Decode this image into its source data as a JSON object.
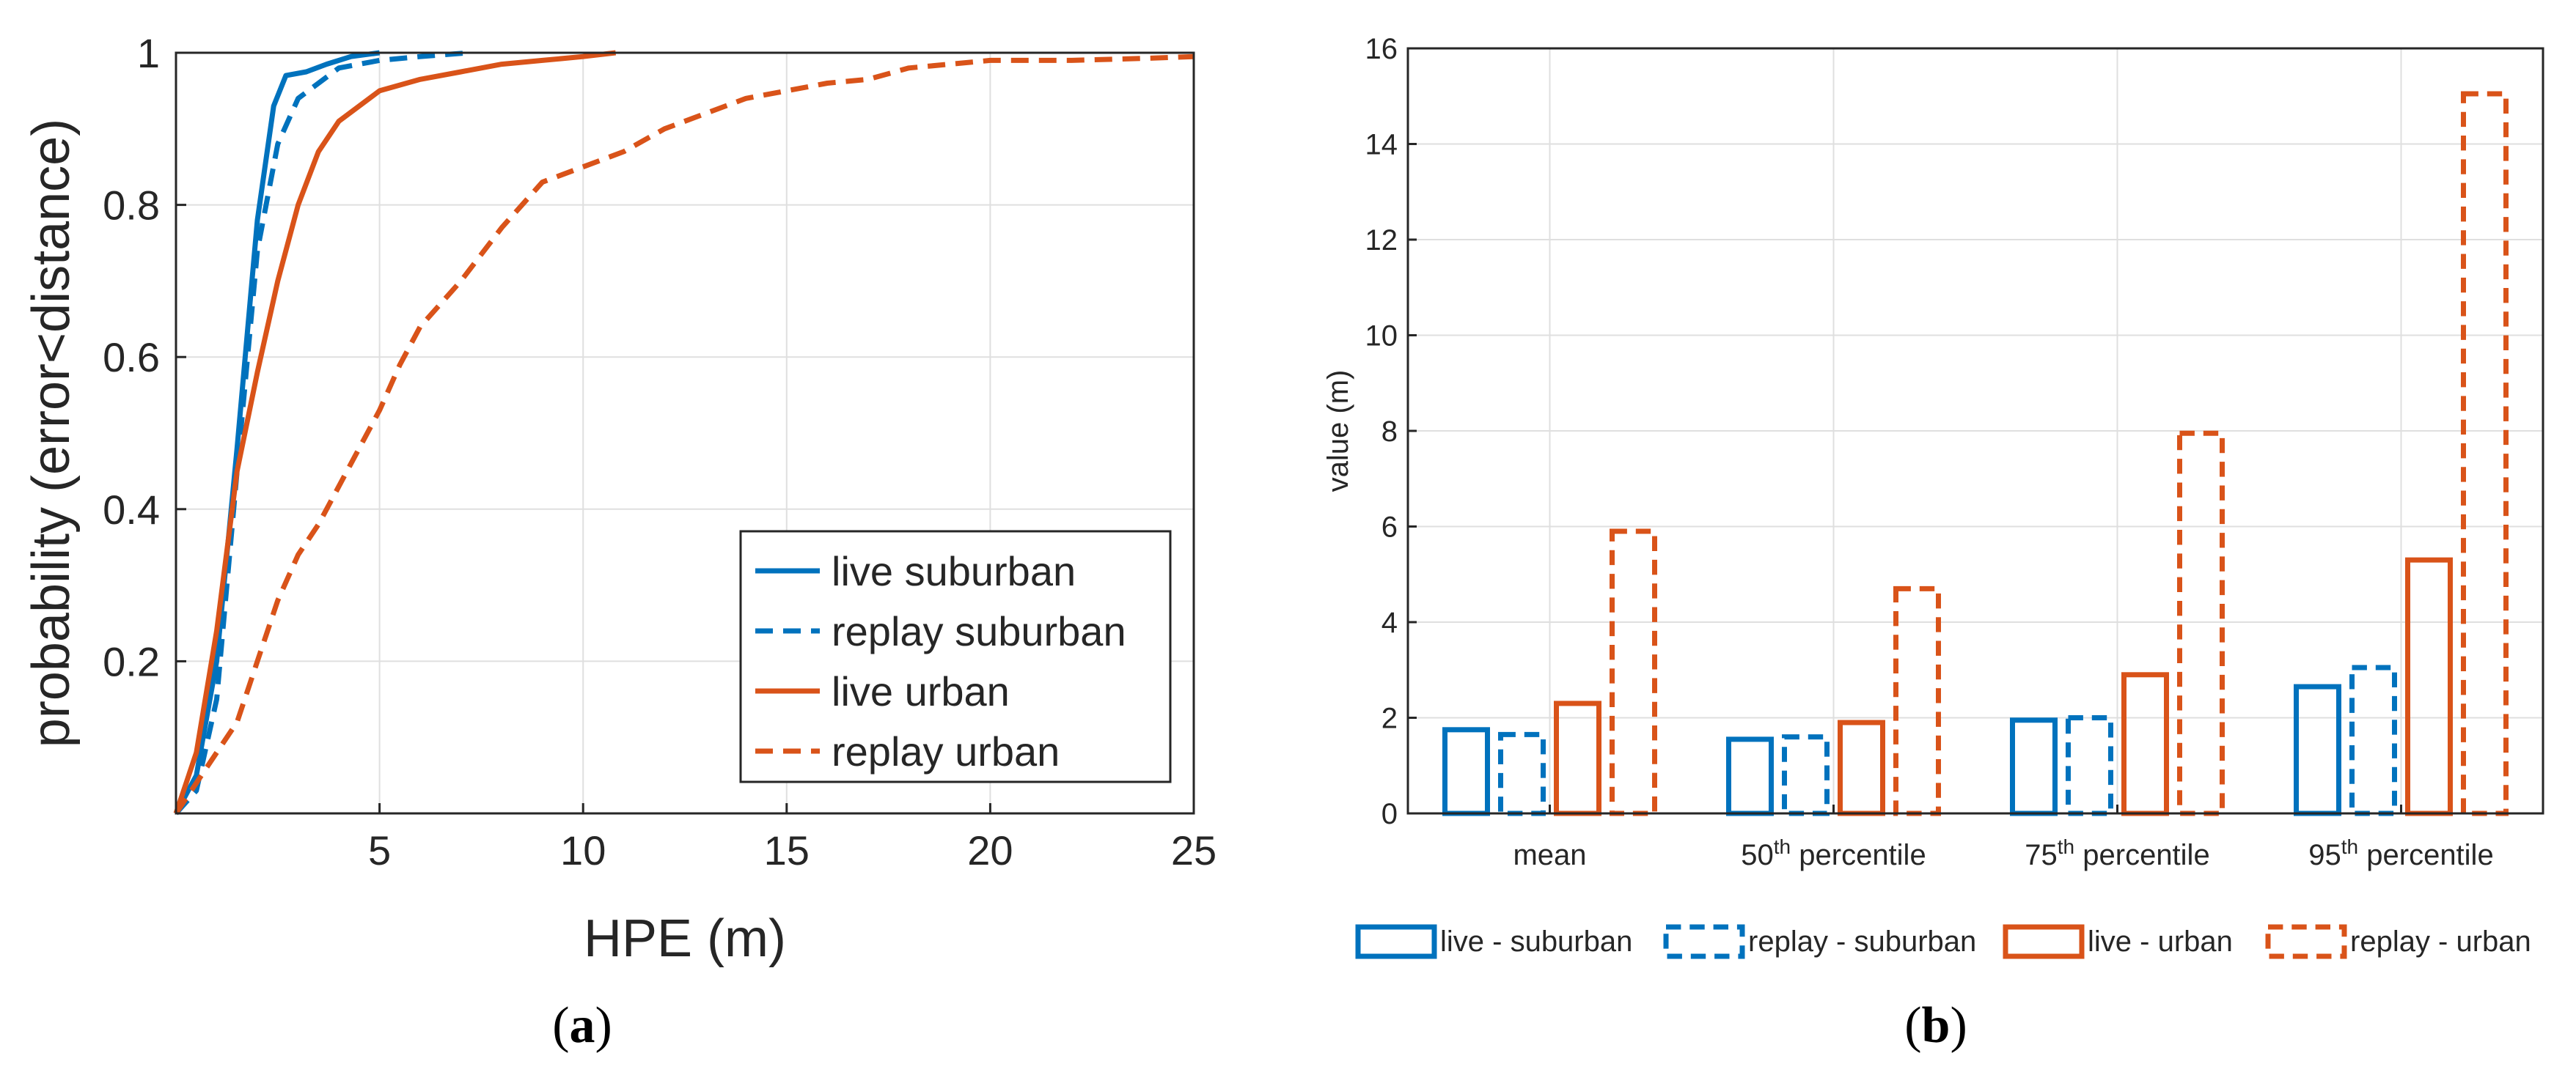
{
  "chart_data": [
    {
      "type": "line",
      "panel_label": "a",
      "title": "",
      "xlabel": "HPE (m)",
      "ylabel": "probability (error<distance)",
      "xlim": [
        0,
        25
      ],
      "ylim": [
        0,
        1
      ],
      "xticks": [
        "5",
        "10",
        "15",
        "20",
        "25"
      ],
      "yticks": [
        "0.2",
        "0.4",
        "0.6",
        "0.8",
        "1"
      ],
      "grid": true,
      "legend_position": "bottom-right",
      "series": [
        {
          "name": "live suburban",
          "color": "#0072BD",
          "style": "solid",
          "points": [
            [
              0,
              0
            ],
            [
              0.5,
              0.05
            ],
            [
              1,
              0.2
            ],
            [
              1.5,
              0.48
            ],
            [
              2,
              0.78
            ],
            [
              2.4,
              0.93
            ],
            [
              2.7,
              0.97
            ],
            [
              3.2,
              0.975
            ],
            [
              3.7,
              0.985
            ],
            [
              4.3,
              0.995
            ],
            [
              5,
              1
            ]
          ]
        },
        {
          "name": "replay suburban",
          "color": "#0072BD",
          "style": "dashed",
          "points": [
            [
              0,
              0
            ],
            [
              0.5,
              0.03
            ],
            [
              1,
              0.15
            ],
            [
              1.5,
              0.45
            ],
            [
              2,
              0.74
            ],
            [
              2.5,
              0.88
            ],
            [
              3,
              0.94
            ],
            [
              4,
              0.98
            ],
            [
              5,
              0.99
            ],
            [
              6,
              0.995
            ],
            [
              7.2,
              1
            ]
          ]
        },
        {
          "name": "live urban",
          "color": "#D95319",
          "style": "solid",
          "points": [
            [
              0,
              0
            ],
            [
              0.5,
              0.08
            ],
            [
              1,
              0.24
            ],
            [
              1.5,
              0.45
            ],
            [
              2,
              0.58
            ],
            [
              2.5,
              0.7
            ],
            [
              3,
              0.8
            ],
            [
              3.5,
              0.87
            ],
            [
              4,
              0.91
            ],
            [
              5,
              0.95
            ],
            [
              6,
              0.965
            ],
            [
              7,
              0.975
            ],
            [
              8,
              0.985
            ],
            [
              9,
              0.99
            ],
            [
              10,
              0.995
            ],
            [
              10.8,
              1
            ]
          ]
        },
        {
          "name": "replay urban",
          "color": "#D95319",
          "style": "dashed",
          "points": [
            [
              0,
              0
            ],
            [
              0.5,
              0.04
            ],
            [
              1,
              0.08
            ],
            [
              1.5,
              0.12
            ],
            [
              2,
              0.2
            ],
            [
              2.5,
              0.28
            ],
            [
              3,
              0.34
            ],
            [
              3.5,
              0.38
            ],
            [
              4,
              0.43
            ],
            [
              4.5,
              0.48
            ],
            [
              5,
              0.53
            ],
            [
              5.5,
              0.59
            ],
            [
              6,
              0.64
            ],
            [
              7,
              0.7
            ],
            [
              8,
              0.77
            ],
            [
              9,
              0.83
            ],
            [
              10,
              0.85
            ],
            [
              11,
              0.87
            ],
            [
              12,
              0.9
            ],
            [
              13,
              0.92
            ],
            [
              14,
              0.94
            ],
            [
              15,
              0.95
            ],
            [
              16,
              0.96
            ],
            [
              17,
              0.965
            ],
            [
              18,
              0.98
            ],
            [
              19,
              0.985
            ],
            [
              20,
              0.99
            ],
            [
              22,
              0.99
            ],
            [
              24,
              0.993
            ],
            [
              25,
              0.995
            ]
          ]
        }
      ]
    },
    {
      "type": "bar",
      "panel_label": "b",
      "title": "",
      "xlabel": "",
      "ylabel": "value (m)",
      "ylim": [
        0,
        16
      ],
      "yticks": [
        "0",
        "2",
        "4",
        "6",
        "8",
        "10",
        "12",
        "14",
        "16"
      ],
      "grid": true,
      "legend_position": "bottom-outside",
      "categories": [
        {
          "main": "mean",
          "sup": "",
          "rest": ""
        },
        {
          "main": "50",
          "sup": "th",
          "rest": " percentile"
        },
        {
          "main": "75",
          "sup": "th",
          "rest": " percentile"
        },
        {
          "main": "95",
          "sup": "th",
          "rest": " percentile"
        }
      ],
      "series": [
        {
          "name": "live - suburban",
          "color": "#0072BD",
          "style": "solid",
          "values": [
            1.75,
            1.55,
            1.95,
            2.65
          ]
        },
        {
          "name": "replay - suburban",
          "color": "#0072BD",
          "style": "dashed",
          "values": [
            1.65,
            1.6,
            2.0,
            3.05
          ]
        },
        {
          "name": "live - urban",
          "color": "#D95319",
          "style": "solid",
          "values": [
            2.3,
            1.9,
            2.9,
            5.3
          ]
        },
        {
          "name": "replay - urban",
          "color": "#D95319",
          "style": "dashed",
          "values": [
            5.9,
            4.7,
            7.95,
            15.05
          ]
        }
      ]
    }
  ],
  "captions": {
    "a": "(a)",
    "b": "(b)"
  }
}
